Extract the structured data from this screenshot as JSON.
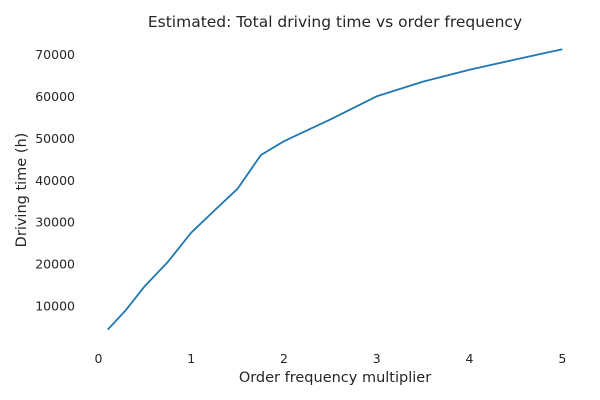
{
  "chart_data": {
    "type": "line",
    "title": "Estimated: Total driving time vs order frequency",
    "xlabel": "Order frequency multiplier",
    "ylabel": "Driving time (h)",
    "xlim": [
      -0.145,
      5.245
    ],
    "ylim": [
      1000,
      74600
    ],
    "xticks": [
      0,
      1,
      2,
      3,
      4,
      5
    ],
    "yticks": [
      10000,
      20000,
      30000,
      40000,
      50000,
      60000,
      70000
    ],
    "grid": false,
    "line_color": "#1f77b4",
    "series": [
      {
        "x": [
          0.1,
          0.3,
          0.5,
          0.75,
          1.0,
          1.25,
          1.5,
          1.75,
          2.0,
          2.5,
          3.0,
          3.5,
          4.0,
          4.5,
          5.0
        ],
        "y": [
          4400,
          9200,
          14800,
          20600,
          27500,
          32800,
          38000,
          46000,
          49300,
          54500,
          60000,
          63500,
          66300,
          68800,
          71200
        ]
      }
    ]
  }
}
